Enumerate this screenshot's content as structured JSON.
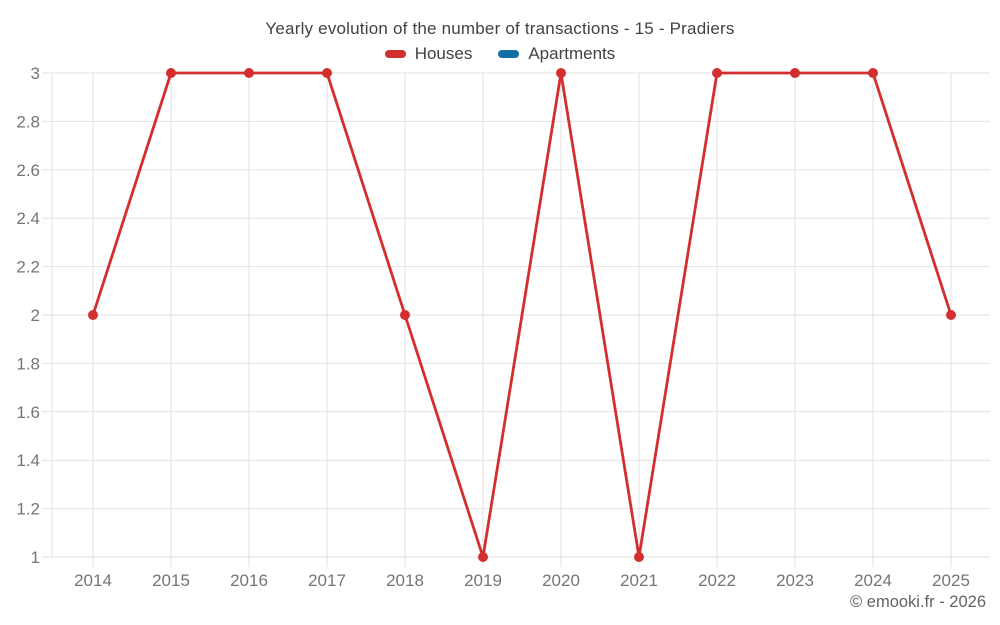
{
  "title": "Yearly evolution of the number of transactions - 15 - Pradiers",
  "copyright": "© emooki.fr - 2026",
  "legend": [
    {
      "label": "Houses",
      "color": "#d32f2f"
    },
    {
      "label": "Apartments",
      "color": "#0f70a6"
    }
  ],
  "chart_data": {
    "type": "line",
    "title": "Yearly evolution of the number of transactions - 15 - Pradiers",
    "categories": [
      "2014",
      "2015",
      "2016",
      "2017",
      "2018",
      "2019",
      "2020",
      "2021",
      "2022",
      "2023",
      "2024",
      "2025"
    ],
    "series": [
      {
        "name": "Houses",
        "color": "#d32f2f",
        "values": [
          2,
          3,
          3,
          3,
          2,
          1,
          3,
          1,
          3,
          3,
          3,
          2
        ]
      },
      {
        "name": "Apartments",
        "color": "#0f70a6",
        "values": []
      }
    ],
    "ylim": [
      1,
      3
    ],
    "yticks": [
      "1",
      "1.2",
      "1.4",
      "1.6",
      "1.8",
      "2",
      "2.2",
      "2.4",
      "2.6",
      "2.8",
      "3"
    ],
    "xlabel": "",
    "ylabel": "",
    "grid": true,
    "legend_position": "top",
    "marker": "circle"
  }
}
